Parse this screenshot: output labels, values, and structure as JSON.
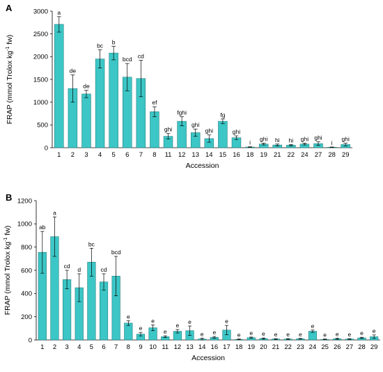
{
  "chart_data": [
    {
      "panel": "A",
      "type": "bar",
      "xlabel": "Accession",
      "ylabel": "FRAP (mmol Trolox kg-1 fw)",
      "ylabel_parts": {
        "main": "FRAP (mmol Trolox kg",
        "sup": "-1",
        "end": " fw)"
      },
      "ylim": [
        0,
        3000
      ],
      "yticks": [
        0,
        500,
        1000,
        1500,
        2000,
        2500,
        3000
      ],
      "bar_color": "#3cc6c6",
      "categories": [
        "1",
        "2",
        "3",
        "4",
        "5",
        "6",
        "7",
        "8",
        "11",
        "12",
        "13",
        "14",
        "15",
        "16",
        "18",
        "19",
        "21",
        "22",
        "24",
        "27",
        "28",
        "29"
      ],
      "values": [
        2710,
        1300,
        1180,
        1950,
        2080,
        1550,
        1520,
        790,
        250,
        580,
        330,
        200,
        580,
        220,
        15,
        80,
        60,
        55,
        80,
        90,
        10,
        70
      ],
      "errors": [
        170,
        300,
        80,
        200,
        150,
        300,
        400,
        110,
        60,
        100,
        80,
        80,
        50,
        40,
        5,
        20,
        20,
        15,
        20,
        40,
        5,
        30
      ],
      "labels": [
        "a",
        "de",
        "de",
        "bc",
        "b",
        "bcd",
        "cd",
        "ef",
        "ghi",
        "fghi",
        "ghi",
        "ghi",
        "fg",
        "ghi",
        "i",
        "ghi",
        "hi",
        "hi",
        "ghi",
        "ghi",
        "i",
        "ghi"
      ]
    },
    {
      "panel": "B",
      "type": "bar",
      "xlabel": "Accession",
      "ylabel": "FRAP (mmol Trolox kg-1 fw)",
      "ylabel_parts": {
        "main": "FRAP (mmol Trolox kg",
        "sup": "-1",
        "end": " fw)"
      },
      "ylim": [
        0,
        1200
      ],
      "yticks": [
        0,
        200,
        400,
        600,
        800,
        1000,
        1200
      ],
      "bar_color": "#3cc6c6",
      "categories": [
        "1",
        "2",
        "3",
        "4",
        "5",
        "6",
        "7",
        "8",
        "9",
        "10",
        "11",
        "12",
        "13",
        "14",
        "16",
        "17",
        "18",
        "19",
        "20",
        "21",
        "22",
        "23",
        "24",
        "25",
        "26",
        "27",
        "28",
        "29"
      ],
      "values": [
        755,
        890,
        520,
        450,
        670,
        500,
        550,
        145,
        50,
        105,
        28,
        75,
        80,
        8,
        22,
        85,
        5,
        20,
        12,
        8,
        8,
        10,
        75,
        5,
        10,
        8,
        18,
        28
      ],
      "errors": [
        180,
        170,
        80,
        120,
        120,
        70,
        170,
        20,
        15,
        25,
        8,
        15,
        40,
        8,
        8,
        40,
        3,
        5,
        5,
        3,
        3,
        3,
        10,
        3,
        5,
        3,
        5,
        15
      ],
      "labels": [
        "ab",
        "a",
        "cd",
        "d",
        "bc",
        "cd",
        "bcd",
        "e",
        "e",
        "e",
        "e",
        "e",
        "e",
        "e",
        "e",
        "e",
        "e",
        "e",
        "e",
        "e",
        "e",
        "e",
        "e",
        "e",
        "e",
        "e",
        "e",
        "e"
      ]
    }
  ]
}
